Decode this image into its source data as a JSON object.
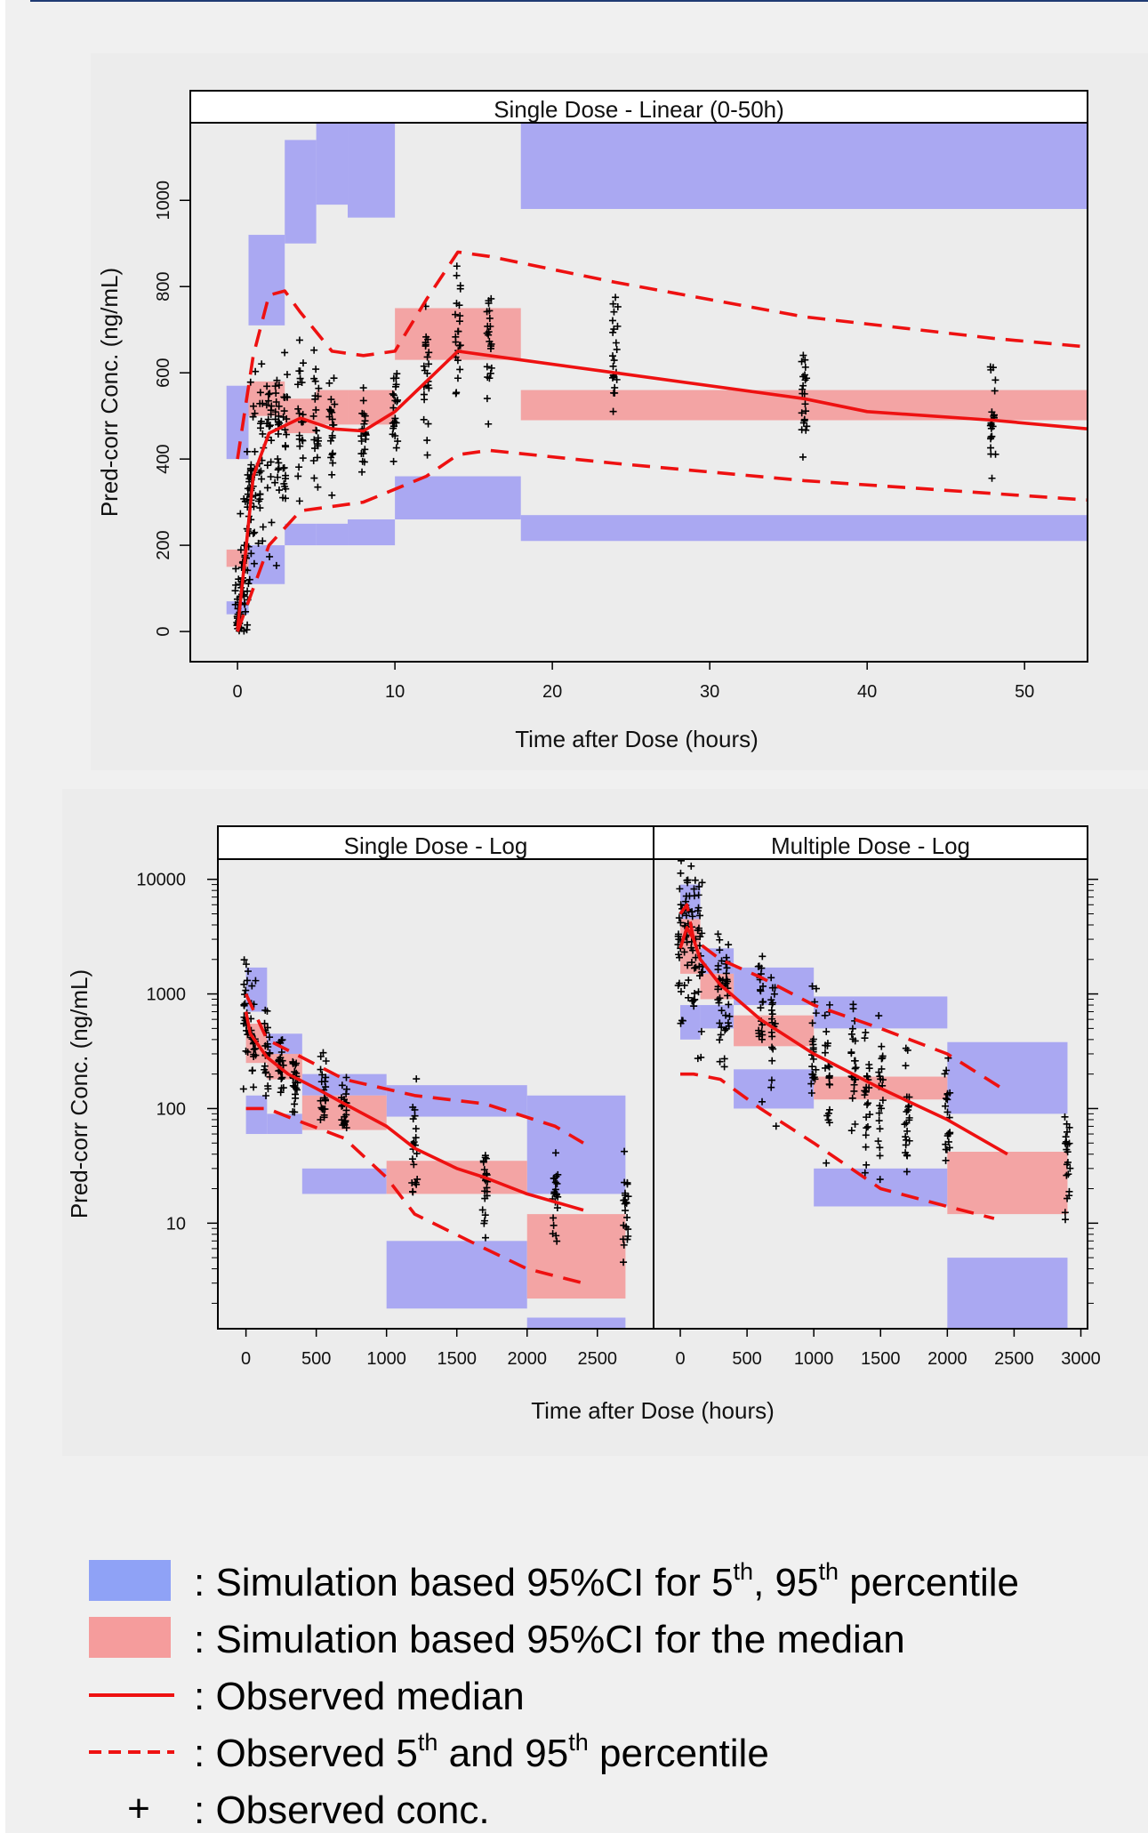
{
  "chart_data": [
    {
      "type": "scatter",
      "title": "Single Dose - Linear (0-50h)",
      "xlabel": "Time after Dose (hours)",
      "ylabel": "Pred-corr Conc. (ng/mL)",
      "xlim": [
        -3,
        54
      ],
      "ylim": [
        -70,
        1180
      ],
      "x_ticks": [
        0,
        10,
        20,
        30,
        40,
        50
      ],
      "y_ticks": [
        0,
        200,
        400,
        600,
        800,
        1000
      ],
      "y_tick_labels": [
        "0",
        "200",
        "400",
        "600",
        "800",
        "1000"
      ],
      "observed_times": [
        0,
        0.25,
        0.5,
        0.75,
        1,
        1.5,
        2,
        2.5,
        3,
        4,
        5,
        6,
        8,
        10,
        12,
        14,
        16,
        24,
        36,
        48
      ],
      "series": [
        {
          "name": "Observed median",
          "style": "solid",
          "x": [
            0,
            0.5,
            1,
            2,
            4,
            6,
            8,
            10,
            12,
            14,
            16,
            24,
            36,
            40,
            48,
            54
          ],
          "values": [
            5,
            180,
            360,
            460,
            495,
            470,
            465,
            510,
            580,
            650,
            640,
            600,
            540,
            510,
            490,
            470
          ]
        },
        {
          "name": "Observed 5th percentile",
          "style": "dashed",
          "x": [
            0,
            1,
            2,
            4,
            6,
            8,
            10,
            12,
            14,
            16,
            24,
            36,
            48,
            54
          ],
          "values": [
            0,
            100,
            200,
            280,
            290,
            300,
            330,
            360,
            410,
            420,
            390,
            350,
            320,
            305
          ]
        },
        {
          "name": "Observed 95th percentile",
          "style": "dashed",
          "x": [
            0,
            1,
            2,
            3,
            4,
            6,
            8,
            10,
            12,
            14,
            16,
            24,
            36,
            48,
            54
          ],
          "values": [
            400,
            640,
            780,
            790,
            740,
            650,
            640,
            650,
            770,
            880,
            870,
            810,
            730,
            680,
            660
          ]
        }
      ],
      "pi_5th_95th": [
        {
          "x": [
            -0.7,
            0.7
          ],
          "y": [
            40,
            70
          ]
        },
        {
          "x": [
            -0.7,
            0.7
          ],
          "y": [
            400,
            570
          ]
        },
        {
          "x": [
            0.7,
            3
          ],
          "y": [
            110,
            200
          ]
        },
        {
          "x": [
            0.7,
            3
          ],
          "y": [
            710,
            920
          ]
        },
        {
          "x": [
            3,
            5
          ],
          "y": [
            200,
            250
          ]
        },
        {
          "x": [
            3,
            5
          ],
          "y": [
            900,
            1140
          ]
        },
        {
          "x": [
            5,
            7
          ],
          "y": [
            200,
            250
          ]
        },
        {
          "x": [
            5,
            7
          ],
          "y": [
            990,
            1180
          ]
        },
        {
          "x": [
            7,
            10
          ],
          "y": [
            200,
            260
          ]
        },
        {
          "x": [
            7,
            10
          ],
          "y": [
            960,
            1180
          ]
        },
        {
          "x": [
            10,
            18
          ],
          "y": [
            260,
            360
          ]
        },
        {
          "x": [
            18,
            54
          ],
          "y": [
            210,
            270
          ]
        },
        {
          "x": [
            18,
            54
          ],
          "y": [
            980,
            1180
          ]
        }
      ],
      "ci_median": [
        {
          "x": [
            -0.7,
            0.7
          ],
          "y": [
            150,
            190
          ]
        },
        {
          "x": [
            0.7,
            3
          ],
          "y": [
            500,
            580
          ]
        },
        {
          "x": [
            3,
            5
          ],
          "y": [
            460,
            540
          ]
        },
        {
          "x": [
            5,
            7
          ],
          "y": [
            480,
            560
          ]
        },
        {
          "x": [
            7,
            10
          ],
          "y": [
            480,
            560
          ]
        },
        {
          "x": [
            10,
            18
          ],
          "y": [
            630,
            750
          ]
        },
        {
          "x": [
            18,
            54
          ],
          "y": [
            490,
            560
          ]
        }
      ]
    },
    {
      "type": "scatter",
      "title": "Single Dose - Log",
      "xlabel": "Time after Dose (hours)",
      "ylabel": "Pred-corr Conc. (ng/mL)",
      "yscale": "log",
      "xlim": [
        -200,
        2900
      ],
      "ylim": [
        1.2,
        15000
      ],
      "x_ticks": [
        0,
        500,
        1000,
        1500,
        2000,
        2500
      ],
      "y_ticks": [
        10,
        100,
        1000,
        10000
      ],
      "y_tick_labels": [
        "10",
        "100",
        "1000",
        "10000"
      ],
      "observed_times": [
        0,
        50,
        150,
        250,
        350,
        550,
        700,
        1200,
        1700,
        2200,
        2700
      ],
      "series": [
        {
          "name": "Observed median",
          "style": "solid",
          "x": [
            0,
            30,
            150,
            300,
            500,
            700,
            1000,
            1200,
            1500,
            1700,
            2000,
            2400
          ],
          "values": [
            700,
            450,
            280,
            200,
            150,
            110,
            70,
            45,
            30,
            25,
            18,
            13
          ]
        },
        {
          "name": "Observed 5th percentile",
          "style": "dashed",
          "x": [
            0,
            150,
            350,
            700,
            1000,
            1200,
            1700,
            2000,
            2400
          ],
          "values": [
            100,
            100,
            80,
            55,
            25,
            12,
            6,
            4,
            3
          ]
        },
        {
          "name": "Observed 95th percentile",
          "style": "dashed",
          "x": [
            0,
            150,
            350,
            700,
            1200,
            1700,
            2200,
            2400
          ],
          "values": [
            1000,
            400,
            300,
            180,
            130,
            110,
            70,
            50
          ]
        }
      ],
      "pi_5th_95th": [
        {
          "x": [
            0,
            150
          ],
          "y": [
            60,
            130
          ]
        },
        {
          "x": [
            0,
            150
          ],
          "y": [
            700,
            1700
          ]
        },
        {
          "x": [
            150,
            400
          ],
          "y": [
            60,
            90
          ]
        },
        {
          "x": [
            150,
            400
          ],
          "y": [
            280,
            450
          ]
        },
        {
          "x": [
            400,
            1000
          ],
          "y": [
            18,
            30
          ]
        },
        {
          "x": [
            400,
            1000
          ],
          "y": [
            130,
            200
          ]
        },
        {
          "x": [
            1000,
            2000
          ],
          "y": [
            1.8,
            7
          ]
        },
        {
          "x": [
            1000,
            2000
          ],
          "y": [
            85,
            160
          ]
        },
        {
          "x": [
            2000,
            2700
          ],
          "y": [
            0.8,
            1.5
          ]
        },
        {
          "x": [
            2000,
            2700
          ],
          "y": [
            18,
            130
          ]
        }
      ],
      "ci_median": [
        {
          "x": [
            0,
            150
          ],
          "y": [
            250,
            550
          ]
        },
        {
          "x": [
            150,
            400
          ],
          "y": [
            180,
            300
          ]
        },
        {
          "x": [
            400,
            1000
          ],
          "y": [
            65,
            130
          ]
        },
        {
          "x": [
            1000,
            2000
          ],
          "y": [
            18,
            35
          ]
        },
        {
          "x": [
            2000,
            2700
          ],
          "y": [
            2.2,
            12
          ]
        }
      ]
    },
    {
      "type": "scatter",
      "title": "Multiple Dose - Log",
      "xlabel": "Time after Dose (hours)",
      "ylabel": "Pred-corr Conc. (ng/mL)",
      "yscale": "log",
      "xlim": [
        -200,
        3050
      ],
      "ylim": [
        1.2,
        15000
      ],
      "x_ticks": [
        0,
        500,
        1000,
        1500,
        2000,
        2500,
        3000
      ],
      "y_ticks": [
        10,
        100,
        1000,
        10000
      ],
      "observed_times": [
        0,
        50,
        100,
        150,
        300,
        350,
        600,
        700,
        1000,
        1100,
        1300,
        1400,
        1500,
        1700,
        2000,
        2900
      ],
      "series": [
        {
          "name": "Observed median",
          "style": "solid",
          "x": [
            0,
            50,
            100,
            150,
            300,
            600,
            1000,
            1500,
            2000,
            2450
          ],
          "values": [
            2500,
            3800,
            3000,
            2000,
            1200,
            600,
            300,
            150,
            80,
            40
          ]
        },
        {
          "name": "Observed 5th percentile",
          "style": "dashed",
          "x": [
            0,
            100,
            300,
            600,
            1000,
            1500,
            2000,
            2350
          ],
          "values": [
            200,
            200,
            180,
            100,
            50,
            20,
            14,
            11
          ]
        },
        {
          "name": "Observed 95th percentile",
          "style": "dashed",
          "x": [
            0,
            50,
            100,
            300,
            600,
            1000,
            1500,
            2000,
            2450
          ],
          "values": [
            5000,
            6000,
            3000,
            2000,
            1400,
            800,
            500,
            300,
            140
          ]
        }
      ],
      "pi_5th_95th": [
        {
          "x": [
            0,
            150
          ],
          "y": [
            400,
            800
          ]
        },
        {
          "x": [
            0,
            150
          ],
          "y": [
            4500,
            9000
          ]
        },
        {
          "x": [
            150,
            400
          ],
          "y": [
            500,
            800
          ]
        },
        {
          "x": [
            150,
            400
          ],
          "y": [
            1500,
            2500
          ]
        },
        {
          "x": [
            400,
            1000
          ],
          "y": [
            100,
            220
          ]
        },
        {
          "x": [
            400,
            1000
          ],
          "y": [
            800,
            1700
          ]
        },
        {
          "x": [
            1000,
            2000
          ],
          "y": [
            14,
            30
          ]
        },
        {
          "x": [
            1000,
            2000
          ],
          "y": [
            500,
            950
          ]
        },
        {
          "x": [
            2000,
            2900
          ],
          "y": [
            0.8,
            5
          ]
        },
        {
          "x": [
            2000,
            2900
          ],
          "y": [
            90,
            380
          ]
        }
      ],
      "ci_median": [
        {
          "x": [
            0,
            150
          ],
          "y": [
            1500,
            4500
          ]
        },
        {
          "x": [
            150,
            400
          ],
          "y": [
            900,
            1500
          ]
        },
        {
          "x": [
            400,
            1000
          ],
          "y": [
            350,
            650
          ]
        },
        {
          "x": [
            1000,
            2000
          ],
          "y": [
            120,
            190
          ]
        },
        {
          "x": [
            2000,
            2900
          ],
          "y": [
            12,
            42
          ]
        }
      ]
    }
  ],
  "legend": {
    "items": [
      {
        "kind": "pi-box",
        "parts": [
          ": Simulation based 95%CI for 5",
          "th",
          ", 95",
          "th",
          " percentile"
        ]
      },
      {
        "kind": "ci-box",
        "parts": [
          ": Simulation based 95%CI for the median"
        ]
      },
      {
        "kind": "solid-line",
        "parts": [
          ": Observed median"
        ]
      },
      {
        "kind": "dashed-line",
        "parts": [
          ": Observed 5",
          "th",
          " and 95",
          "th",
          " percentile"
        ]
      },
      {
        "kind": "plus-marker",
        "parts": [
          ": Observed conc."
        ]
      }
    ],
    "marker_symbol": "+"
  },
  "colors": {
    "pi_band": "#aaa8f2",
    "ci_band": "#f3a4a4",
    "median_line": "#ee1111",
    "observation": "#000000",
    "legend_pi": "#8fa2f6",
    "legend_ci": "#f59c9c"
  }
}
